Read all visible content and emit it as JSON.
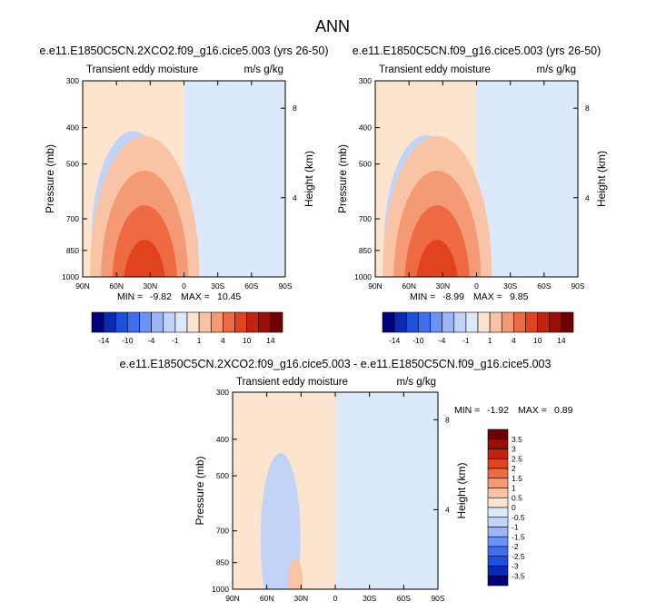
{
  "page": {
    "title": "ANN"
  },
  "chart_data": [
    {
      "type": "heatmap",
      "title": "e.e11.E1850C5CN.2XCO2.f09_g16.cice5.003 (yrs 26-50)",
      "subtitle_left": "Transient eddy moisture",
      "subtitle_right": "m/s g/kg",
      "ylabel": "Pressure (mb)",
      "y2label": "Height (km)",
      "x_ticks": [
        "90N",
        "60N",
        "30N",
        "0",
        "30S",
        "60S",
        "90S"
      ],
      "y_ticks": [
        "300",
        "400",
        "500",
        "700",
        "850",
        "1000"
      ],
      "y2_ticks": [
        "8",
        "4"
      ],
      "ylim": [
        1000,
        300
      ],
      "min_label": "MIN =",
      "min_value": "-9.82",
      "max_label": "MAX =",
      "max_value": "10.45",
      "zero_latitude": 0,
      "neg_lobe": {
        "lat": 45,
        "p": 780
      },
      "pos_lobe": {
        "lat": 35,
        "p": 930
      },
      "legend_ticks": [
        "-14",
        "-10",
        "-4",
        "-1",
        "1",
        "4",
        "10",
        "14"
      ]
    },
    {
      "type": "heatmap",
      "title": "e.e11.E1850C5CN.f09_g16.cice5.003 (yrs 26-50)",
      "subtitle_left": "Transient eddy moisture",
      "subtitle_right": "m/s g/kg",
      "ylabel": "Pressure (mb)",
      "y2label": "Height (km)",
      "x_ticks": [
        "90N",
        "60N",
        "30N",
        "0",
        "30S",
        "60S",
        "90S"
      ],
      "y_ticks": [
        "300",
        "400",
        "500",
        "700",
        "850",
        "1000"
      ],
      "y2_ticks": [
        "8",
        "4"
      ],
      "ylim": [
        1000,
        300
      ],
      "min_label": "MIN =",
      "min_value": "-8.99",
      "max_label": "MAX =",
      "max_value": "9.85",
      "zero_latitude": 0,
      "neg_lobe": {
        "lat": 45,
        "p": 800
      },
      "pos_lobe": {
        "lat": 35,
        "p": 930
      },
      "legend_ticks": [
        "-14",
        "-10",
        "-4",
        "-1",
        "1",
        "4",
        "10",
        "14"
      ]
    },
    {
      "type": "heatmap",
      "title": "e.e11.E1850C5CN.2XCO2.f09_g16.cice5.003 - e.e11.E1850C5CN.f09_g16.cice5.003",
      "subtitle_left": "Transient eddy moisture",
      "subtitle_right": "m/s g/kg",
      "ylabel": "Pressure (mb)",
      "y2label": "Height (km)",
      "x_ticks": [
        "90N",
        "60N",
        "30N",
        "0",
        "30S",
        "60S",
        "90S"
      ],
      "y_ticks": [
        "300",
        "400",
        "500",
        "700",
        "850",
        "1000"
      ],
      "y2_ticks": [
        "8",
        "4"
      ],
      "ylim": [
        1000,
        300
      ],
      "min_label": "MIN =",
      "min_value": "-1.92",
      "max_label": "MAX =",
      "max_value": "0.89",
      "zero_latitude": 0,
      "neg_lobe": {
        "lat": 48,
        "p": 720
      },
      "pos_lobe": {
        "lat": 35,
        "p": 950
      },
      "legend_ticks": [
        "3.5",
        "3",
        "2.5",
        "2",
        "1.5",
        "1",
        "0.5",
        "0",
        "-0.5",
        "-1",
        "-1.5",
        "-2",
        "-2.5",
        "-3",
        "-3.5"
      ]
    }
  ],
  "colorbars": {
    "horizontal_colors": [
      "#00007d",
      "#0a2ab4",
      "#1d4fe0",
      "#3e6ff2",
      "#6b93f5",
      "#9ab6f7",
      "#c1d4f8",
      "#dbe9fb",
      "#fde4cf",
      "#f9c4a6",
      "#f49a74",
      "#ee6a43",
      "#e2431f",
      "#c22210",
      "#9a0e06",
      "#6e0000"
    ],
    "vertical_colors": [
      "#6e0000",
      "#9a0e06",
      "#c22210",
      "#e2431f",
      "#ee6a43",
      "#f49a74",
      "#f9c4a6",
      "#fde4cf",
      "#dbe9fb",
      "#c1d4f8",
      "#9ab6f7",
      "#6b93f5",
      "#3e6ff2",
      "#1d4fe0",
      "#0a2ab4",
      "#00007d"
    ]
  }
}
